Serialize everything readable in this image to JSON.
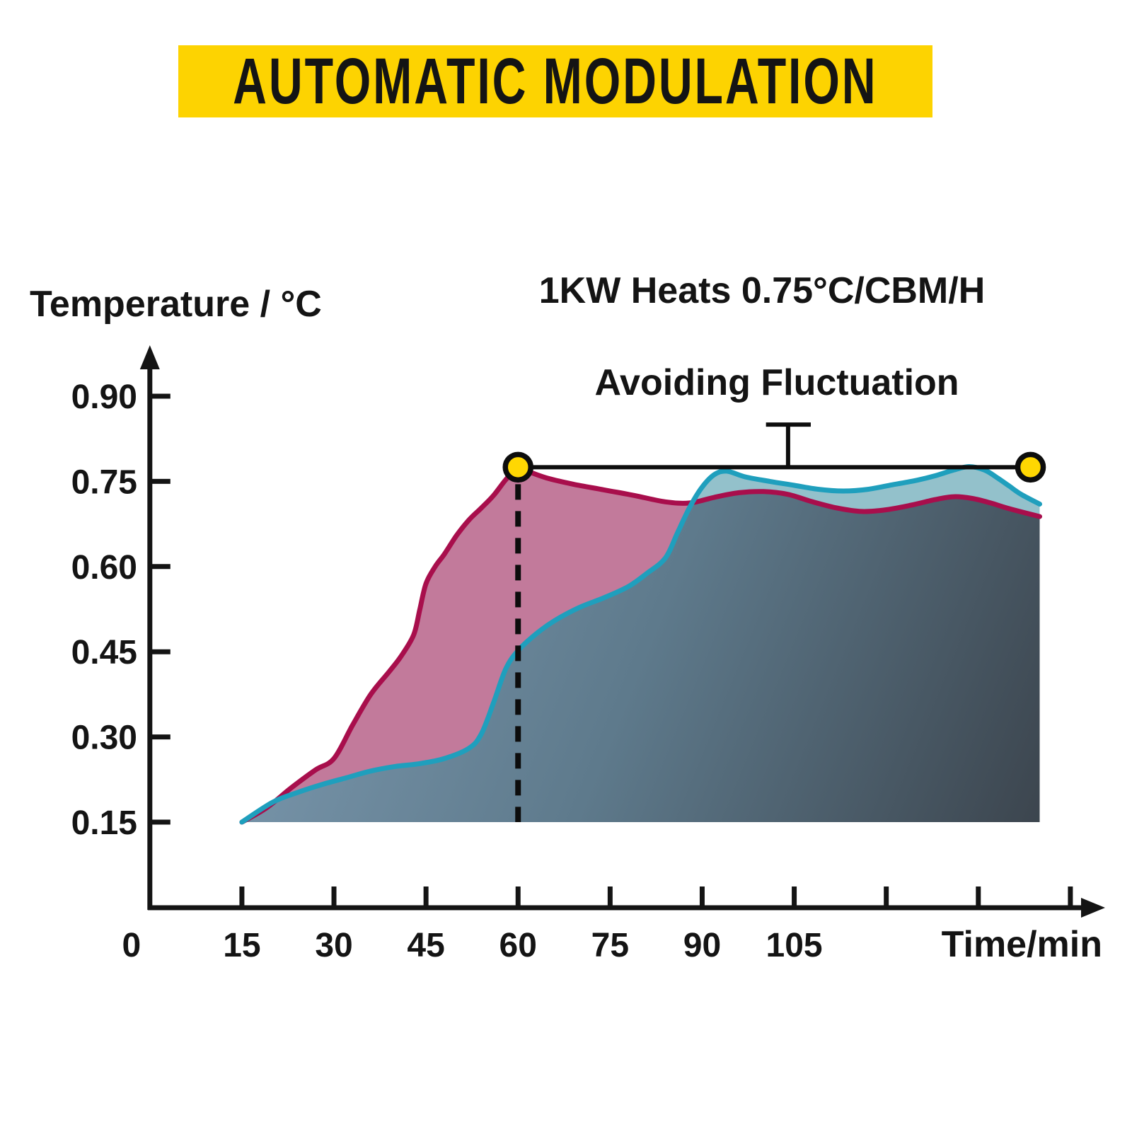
{
  "header": {
    "title": "AUTOMATIC MODULATION",
    "banner_color": "#FDD301",
    "title_color": "#141414"
  },
  "chart_data": {
    "type": "area",
    "title": "AUTOMATIC MODULATION",
    "subtitle": "1KW Heats 0.75°C/CBM/H",
    "ylabel": "Temperature / °C",
    "xlabel": "Time/min",
    "x_origin_label": "0",
    "xlim": [
      0,
      155
    ],
    "ylim": [
      0,
      0.95
    ],
    "grid": false,
    "legend": "none",
    "x_ticks": [
      {
        "t": 15,
        "label": "15"
      },
      {
        "t": 30,
        "label": "30"
      },
      {
        "t": 45,
        "label": "45"
      },
      {
        "t": 60,
        "label": "60"
      },
      {
        "t": 75,
        "label": "75"
      },
      {
        "t": 90,
        "label": "90"
      },
      {
        "t": 105,
        "label": "105"
      },
      {
        "t": 120,
        "label": ""
      },
      {
        "t": 135,
        "label": ""
      },
      {
        "t": 150,
        "label": ""
      }
    ],
    "y_ticks": [
      {
        "v": 0.15,
        "label": "0.15"
      },
      {
        "v": 0.3,
        "label": "0.30"
      },
      {
        "v": 0.45,
        "label": "0.45"
      },
      {
        "v": 0.6,
        "label": "0.60"
      },
      {
        "v": 0.75,
        "label": "0.75"
      },
      {
        "v": 0.9,
        "label": "0.90"
      }
    ],
    "axis_color": "#141414",
    "series": [
      {
        "id": "rapid-heat-curve",
        "line_color": "#A80E4C",
        "fill_color": "#C27A9B",
        "points": [
          [
            15,
            0.15
          ],
          [
            19,
            0.175
          ],
          [
            23,
            0.21
          ],
          [
            27,
            0.242
          ],
          [
            30,
            0.262
          ],
          [
            33,
            0.32
          ],
          [
            36,
            0.375
          ],
          [
            39,
            0.415
          ],
          [
            41,
            0.443
          ],
          [
            43,
            0.48
          ],
          [
            44,
            0.525
          ],
          [
            45,
            0.57
          ],
          [
            46.5,
            0.6
          ],
          [
            48,
            0.622
          ],
          [
            50,
            0.655
          ],
          [
            52,
            0.682
          ],
          [
            54,
            0.703
          ],
          [
            56,
            0.725
          ],
          [
            58,
            0.753
          ],
          [
            60,
            0.775
          ],
          [
            62,
            0.766
          ],
          [
            65,
            0.755
          ],
          [
            69,
            0.745
          ],
          [
            74,
            0.735
          ],
          [
            79,
            0.725
          ],
          [
            84,
            0.714
          ],
          [
            88,
            0.712
          ],
          [
            92,
            0.722
          ],
          [
            96,
            0.73
          ],
          [
            100,
            0.732
          ],
          [
            104,
            0.727
          ],
          [
            108,
            0.714
          ],
          [
            112,
            0.703
          ],
          [
            116,
            0.697
          ],
          [
            120,
            0.7
          ],
          [
            124,
            0.708
          ],
          [
            128,
            0.718
          ],
          [
            131,
            0.723
          ],
          [
            134,
            0.72
          ],
          [
            137,
            0.712
          ],
          [
            140,
            0.702
          ],
          [
            145,
            0.688
          ]
        ]
      },
      {
        "id": "modulated-heat-curve",
        "line_color": "#1F9FBD",
        "fill_color": "#93C1CB",
        "points": [
          [
            15,
            0.15
          ],
          [
            20,
            0.185
          ],
          [
            24,
            0.202
          ],
          [
            28,
            0.216
          ],
          [
            32,
            0.228
          ],
          [
            36,
            0.24
          ],
          [
            40,
            0.248
          ],
          [
            44,
            0.253
          ],
          [
            48,
            0.262
          ],
          [
            52,
            0.28
          ],
          [
            54,
            0.305
          ],
          [
            56,
            0.36
          ],
          [
            58,
            0.42
          ],
          [
            60,
            0.452
          ],
          [
            63,
            0.482
          ],
          [
            66,
            0.505
          ],
          [
            70,
            0.528
          ],
          [
            74,
            0.545
          ],
          [
            78,
            0.565
          ],
          [
            81,
            0.588
          ],
          [
            84,
            0.615
          ],
          [
            86,
            0.66
          ],
          [
            88,
            0.705
          ],
          [
            90,
            0.74
          ],
          [
            92,
            0.762
          ],
          [
            94,
            0.768
          ],
          [
            97,
            0.758
          ],
          [
            101,
            0.75
          ],
          [
            105,
            0.743
          ],
          [
            109,
            0.736
          ],
          [
            113,
            0.733
          ],
          [
            117,
            0.736
          ],
          [
            121,
            0.744
          ],
          [
            125,
            0.752
          ],
          [
            128,
            0.76
          ],
          [
            131,
            0.77
          ],
          [
            133.5,
            0.776
          ],
          [
            136,
            0.77
          ],
          [
            138,
            0.757
          ],
          [
            140,
            0.742
          ],
          [
            142,
            0.727
          ],
          [
            145,
            0.71
          ]
        ]
      }
    ],
    "overlap_fill_gradient": [
      "#7E9BB1",
      "#5E7A8C",
      "#3C454E"
    ],
    "annotations": {
      "setpoint_line": {
        "from_t": 60,
        "to_t": 143.5,
        "temp": 0.775,
        "color": "#0D0D0D"
      },
      "markers": [
        {
          "t": 60,
          "temp": 0.775
        },
        {
          "t": 143.5,
          "temp": 0.775
        }
      ],
      "marker_color": "#FFD702",
      "marker_ring_color": "#0D0D0D",
      "dashed_line": {
        "t": 60,
        "from_temp": 0.775,
        "to_temp": 0.15,
        "color": "#0D0D0D"
      },
      "callout": {
        "label": "Avoiding Fluctuation",
        "stem_t": 104,
        "cap_from_t": 100.4,
        "cap_to_t": 107.7,
        "top_temp": 0.85,
        "bottom_temp": 0.775
      }
    }
  }
}
